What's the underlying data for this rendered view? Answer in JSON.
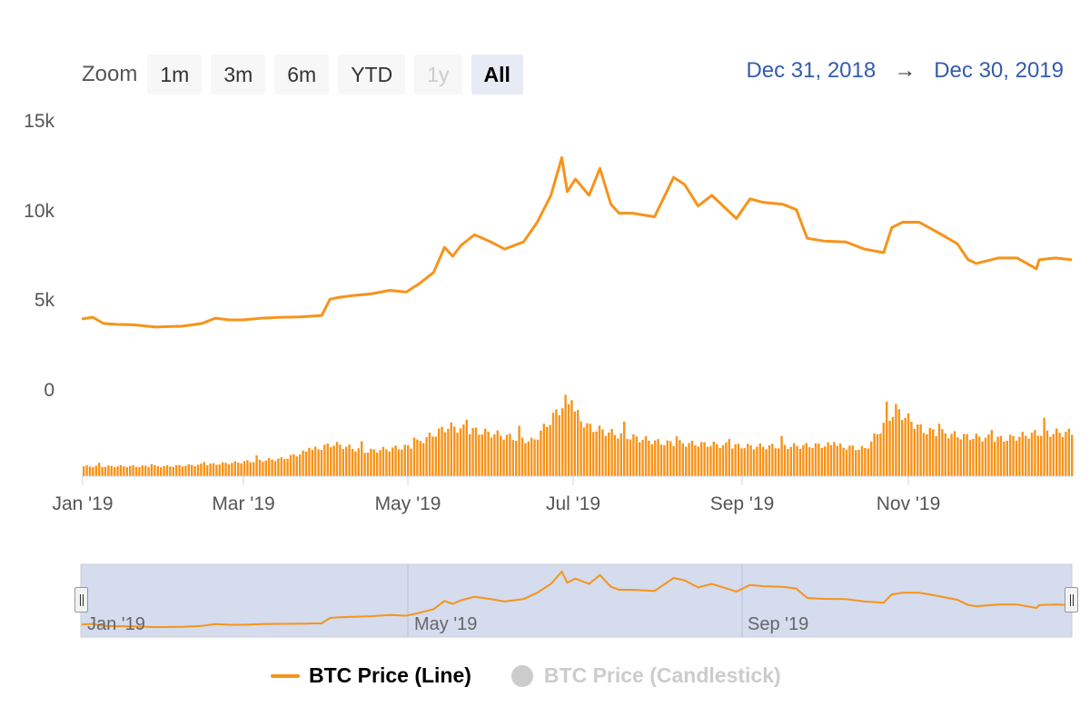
{
  "zoom": {
    "label": "Zoom",
    "buttons": [
      {
        "label": "1m",
        "state": "normal"
      },
      {
        "label": "3m",
        "state": "normal"
      },
      {
        "label": "6m",
        "state": "normal"
      },
      {
        "label": "YTD",
        "state": "normal"
      },
      {
        "label": "1y",
        "state": "disabled"
      },
      {
        "label": "All",
        "state": "selected"
      }
    ]
  },
  "range": {
    "from": "Dec 31, 2018",
    "arrow": "→",
    "to": "Dec 30, 2019"
  },
  "legend": {
    "line_label": "BTC Price (Line)",
    "candle_label": "BTC Price (Candlestick)"
  },
  "colors": {
    "series": "#f7931a",
    "navigator_fill": "#ccd6eb",
    "grid": "#e6e6e6",
    "text": "#333333",
    "muted": "#cccccc"
  },
  "chart_data": {
    "type": "line",
    "ylabel_ticks": [
      "15k",
      "10k",
      "5k",
      "0"
    ],
    "ylim": [
      0,
      15000
    ],
    "x_tick_labels": [
      "Jan '19",
      "Mar '19",
      "May '19",
      "Jul '19",
      "Sep '19",
      "Nov '19"
    ],
    "navigator_labels": [
      "Jan '19",
      "May '19",
      "Sep '19"
    ],
    "grid": false,
    "legend_position": "bottom-center",
    "series": [
      {
        "name": "BTC Price (Line)",
        "x": [
          "2019-01-01",
          "2019-01-05",
          "2019-01-09",
          "2019-01-14",
          "2019-01-20",
          "2019-01-28",
          "2019-02-07",
          "2019-02-14",
          "2019-02-19",
          "2019-02-24",
          "2019-03-01",
          "2019-03-08",
          "2019-03-15",
          "2019-03-22",
          "2019-03-30",
          "2019-04-02",
          "2019-04-05",
          "2019-04-10",
          "2019-04-17",
          "2019-04-24",
          "2019-04-30",
          "2019-05-05",
          "2019-05-10",
          "2019-05-14",
          "2019-05-17",
          "2019-05-20",
          "2019-05-25",
          "2019-05-31",
          "2019-06-05",
          "2019-06-12",
          "2019-06-17",
          "2019-06-22",
          "2019-06-26",
          "2019-06-28",
          "2019-07-01",
          "2019-07-06",
          "2019-07-10",
          "2019-07-14",
          "2019-07-17",
          "2019-07-22",
          "2019-07-30",
          "2019-08-06",
          "2019-08-10",
          "2019-08-15",
          "2019-08-20",
          "2019-08-29",
          "2019-09-03",
          "2019-09-08",
          "2019-09-15",
          "2019-09-20",
          "2019-09-24",
          "2019-09-30",
          "2019-10-08",
          "2019-10-15",
          "2019-10-22",
          "2019-10-25",
          "2019-10-29",
          "2019-11-04",
          "2019-11-10",
          "2019-11-18",
          "2019-11-22",
          "2019-11-25",
          "2019-12-03",
          "2019-12-10",
          "2019-12-17",
          "2019-12-18",
          "2019-12-24",
          "2019-12-30"
        ],
        "values": [
          3900,
          4000,
          3650,
          3600,
          3580,
          3450,
          3500,
          3650,
          3950,
          3850,
          3850,
          3950,
          4000,
          4020,
          4100,
          5000,
          5100,
          5200,
          5300,
          5500,
          5400,
          5900,
          6500,
          7900,
          7400,
          8000,
          8600,
          8200,
          7800,
          8200,
          9300,
          10800,
          12900,
          11000,
          11700,
          10800,
          12300,
          10300,
          9800,
          9800,
          9600,
          11800,
          11400,
          10200,
          10800,
          9500,
          10600,
          10400,
          10300,
          10000,
          8400,
          8250,
          8200,
          7800,
          7600,
          9000,
          9300,
          9300,
          8800,
          8100,
          7200,
          7000,
          7300,
          7300,
          6700,
          7200,
          7300,
          7200
        ]
      }
    ],
    "volume": {
      "name": "Volume",
      "x": [
        "2019-01-01",
        "2019-02-01",
        "2019-02-20",
        "2019-03-15",
        "2019-04-03",
        "2019-04-15",
        "2019-05-01",
        "2019-05-15",
        "2019-06-01",
        "2019-06-15",
        "2019-06-27",
        "2019-07-05",
        "2019-07-15",
        "2019-08-01",
        "2019-08-15",
        "2019-09-01",
        "2019-09-15",
        "2019-10-01",
        "2019-10-15",
        "2019-10-26",
        "2019-11-05",
        "2019-11-20",
        "2019-12-05",
        "2019-12-18",
        "2019-12-30"
      ],
      "values": [
        8,
        8,
        10,
        14,
        26,
        20,
        24,
        40,
        34,
        28,
        60,
        40,
        34,
        27,
        26,
        24,
        24,
        25,
        22,
        54,
        37,
        32,
        30,
        35,
        35
      ]
    }
  }
}
